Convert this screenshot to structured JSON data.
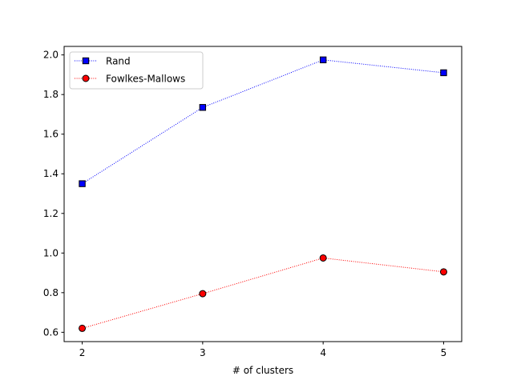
{
  "chart_data": {
    "type": "line",
    "title": "",
    "xlabel": "# of clusters",
    "ylabel": "",
    "x": [
      2,
      3,
      4,
      5
    ],
    "xticks": [
      2,
      3,
      4,
      5
    ],
    "xlim": [
      1.85,
      5.15
    ],
    "yticks": [
      0.6,
      0.8,
      1.0,
      1.2,
      1.4,
      1.6,
      1.8,
      2.0
    ],
    "ytick_labels": [
      "0.6",
      "0.8",
      "1.0",
      "1.2",
      "1.4",
      "1.6",
      "1.8",
      "2.0"
    ],
    "ylim": [
      0.553,
      2.043
    ],
    "grid": false,
    "legend_position": "top-left",
    "series": [
      {
        "name": "Rand",
        "values": [
          1.35,
          1.735,
          1.975,
          1.91
        ],
        "color": "#0000ff",
        "marker": "square",
        "line_style": "dotted"
      },
      {
        "name": "Fowlkes-Mallows",
        "values": [
          0.62,
          0.795,
          0.975,
          0.905
        ],
        "color": "#ff0000",
        "marker": "circle",
        "line_style": "dotted"
      }
    ]
  }
}
